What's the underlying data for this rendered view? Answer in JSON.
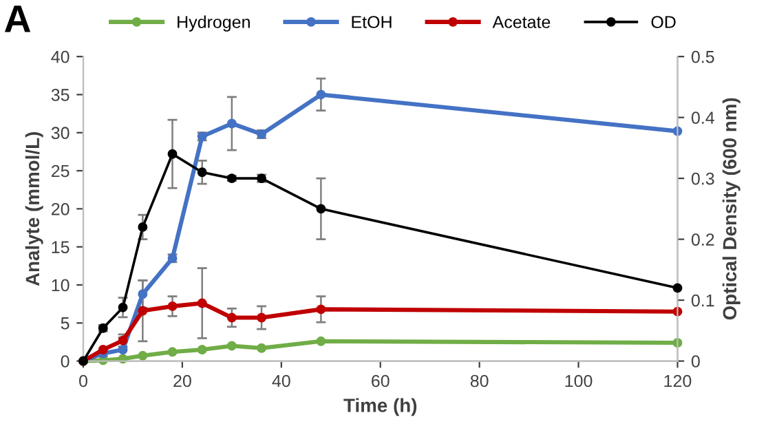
{
  "chart_data": {
    "type": "line",
    "title": "A",
    "xlabel": "Time (h)",
    "ylabel": "Analyte (mmol/L)",
    "y2label": "Optical Density (600 nm)",
    "x": [
      0,
      4,
      8,
      12,
      18,
      24,
      30,
      36,
      48,
      120
    ],
    "series": [
      {
        "name": "Hydrogen",
        "color": "#70ad47",
        "values": [
          0,
          0.1,
          0.3,
          0.7,
          1.2,
          1.5,
          2.0,
          1.7,
          2.6,
          2.4
        ]
      },
      {
        "name": "EtOH",
        "color": "#4472c4",
        "values": [
          0,
          1.0,
          1.5,
          8.8,
          13.5,
          29.5,
          31.2,
          29.8,
          35,
          30.2
        ],
        "errors": [
          null,
          0.4,
          1.6,
          1.8,
          0.5,
          0.5,
          3.5,
          0.5,
          2.1,
          null
        ]
      },
      {
        "name": "Acetate",
        "color": "#c00000",
        "values": [
          0,
          1.5,
          2.7,
          6.6,
          7.2,
          7.6,
          5.7,
          5.7,
          6.8,
          6.5
        ],
        "errors": [
          null,
          null,
          0.8,
          4,
          1.3,
          4.6,
          1.2,
          1.5,
          1.7,
          null
        ]
      },
      {
        "name": "OD",
        "color": "#000000",
        "axis": "y2",
        "values": [
          0,
          0.054,
          0.088,
          0.22,
          0.34,
          0.31,
          0.3,
          0.3,
          0.25,
          0.12
        ],
        "errors": [
          null,
          0.005,
          0.016,
          0.02,
          0.056,
          0.019,
          0.004,
          0.006,
          0.05,
          null
        ]
      }
    ],
    "xlim": [
      0,
      120
    ],
    "xticks": [
      0,
      20,
      40,
      60,
      80,
      100,
      120
    ],
    "ylim": [
      0,
      40
    ],
    "yticks": [
      0,
      5,
      10,
      15,
      20,
      25,
      30,
      35,
      40
    ],
    "y2lim": [
      0,
      0.5
    ],
    "y2ticks": [
      0,
      0.1,
      0.2,
      0.3,
      0.4,
      0.5
    ],
    "legend": "top",
    "grid": false,
    "marker": "circle",
    "line_style": "solid"
  }
}
